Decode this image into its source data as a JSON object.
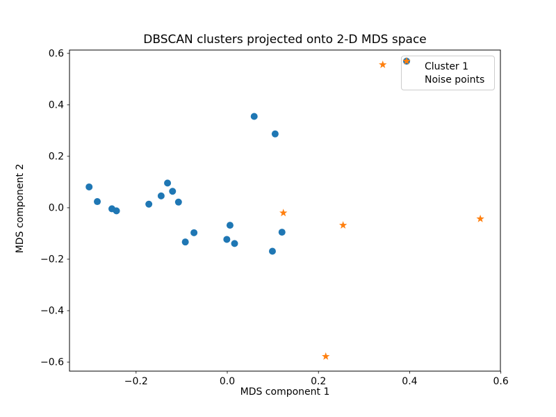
{
  "chart_data": {
    "type": "scatter",
    "title": "DBSCAN clusters projected onto 2-D MDS space",
    "xlabel": "MDS component 1",
    "ylabel": "MDS component 2",
    "xlim": [
      -0.346,
      0.599
    ],
    "ylim": [
      -0.635,
      0.613
    ],
    "xticks": [
      -0.2,
      0.0,
      0.2,
      0.4,
      0.6
    ],
    "xtick_labels": [
      "−0.2",
      "0.0",
      "0.2",
      "0.4",
      "0.6"
    ],
    "yticks": [
      -0.6,
      -0.4,
      -0.2,
      0.0,
      0.2,
      0.4,
      0.6
    ],
    "ytick_labels": [
      "−0.6",
      "−0.4",
      "−0.2",
      "0.0",
      "0.2",
      "0.4",
      "0.6"
    ],
    "grid": false,
    "legend_position": "upper right",
    "background": "#ffffff",
    "series": [
      {
        "name": "Cluster 1",
        "marker": "circle",
        "color": "#1f77b4",
        "points": [
          [
            -0.303,
            0.081
          ],
          [
            -0.285,
            0.024
          ],
          [
            -0.253,
            -0.004
          ],
          [
            -0.243,
            -0.012
          ],
          [
            -0.172,
            0.014
          ],
          [
            -0.145,
            0.046
          ],
          [
            -0.131,
            0.096
          ],
          [
            -0.12,
            0.064
          ],
          [
            -0.107,
            0.022
          ],
          [
            -0.092,
            -0.133
          ],
          [
            -0.073,
            -0.097
          ],
          [
            0.006,
            -0.068
          ],
          [
            -0.001,
            -0.123
          ],
          [
            0.016,
            -0.139
          ],
          [
            0.059,
            0.355
          ],
          [
            0.105,
            0.287
          ],
          [
            0.12,
            -0.095
          ],
          [
            0.099,
            -0.169
          ]
        ]
      },
      {
        "name": "Noise points",
        "marker": "star",
        "color": "#ff7f0e",
        "points": [
          [
            0.341,
            0.556
          ],
          [
            0.123,
            -0.02
          ],
          [
            0.254,
            -0.068
          ],
          [
            0.555,
            -0.043
          ],
          [
            0.216,
            -0.578
          ]
        ]
      }
    ]
  }
}
